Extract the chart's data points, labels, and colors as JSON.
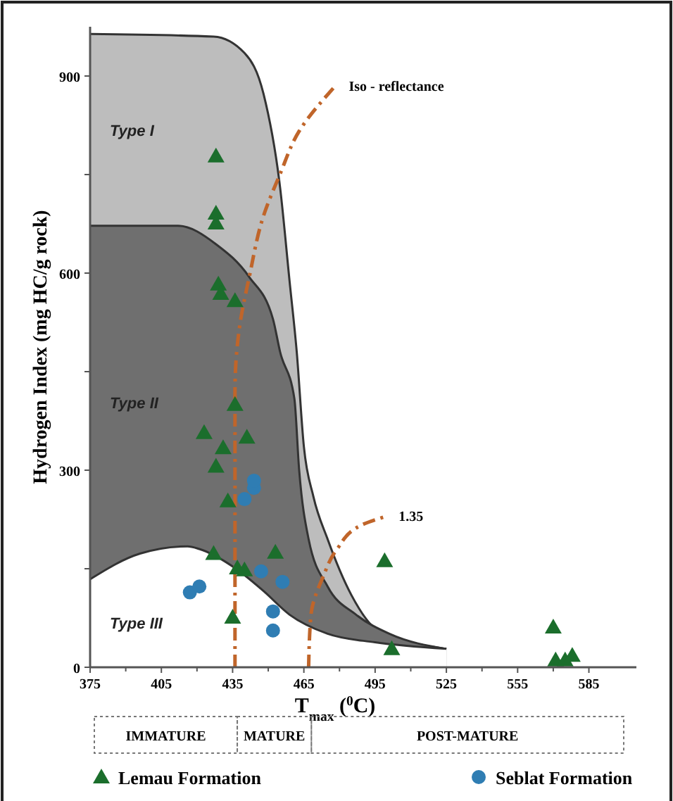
{
  "chart_data": {
    "type": "scatter",
    "xlabel": "T$_{max}$ ($^{0}$C)",
    "ylabel": "Hydrogen Index (mg HC/g rock)",
    "xlim": [
      375,
      605
    ],
    "xticks": [
      375,
      405,
      435,
      465,
      495,
      525,
      555,
      585
    ],
    "ylim": [
      0,
      975
    ],
    "yticks": [
      0,
      {
        "value": 150,
        "label": null
      },
      300,
      {
        "value": 450,
        "label": null
      },
      600,
      {
        "value": 750,
        "label": null
      },
      900
    ],
    "grid": false,
    "legend": "bottom",
    "series": [
      {
        "name": "Type I",
        "type": "area",
        "color": "#bdbdbd",
        "x": [
          375,
          427,
          440,
          448,
          455,
          459,
          462,
          465,
          469,
          475,
          485,
          495,
          510,
          525
        ],
        "values": [
          964,
          960,
          935,
          873,
          730,
          587,
          480,
          336,
          260,
          195,
          110,
          59,
          38,
          28
        ]
      },
      {
        "name": "Type II",
        "type": "area",
        "color": "#6f6f6f",
        "x": [
          375,
          412,
          428,
          442,
          452,
          455,
          461,
          463,
          467,
          475,
          487,
          501,
          525
        ],
        "values": [
          672,
          672,
          644,
          594,
          530,
          480,
          409,
          301,
          195,
          123,
          80,
          51,
          28
        ]
      },
      {
        "name": "Type III",
        "type": "area",
        "color": "#ffffff",
        "x": [
          375,
          396,
          416,
          421,
          436,
          448,
          459,
          475,
          495,
          525
        ],
        "values": [
          134,
          173,
          184,
          180,
          151,
          116,
          80,
          51,
          38,
          28
        ]
      },
      {
        "name": "Iso - reflectance",
        "type": "line",
        "color": "#c0652a",
        "line_style": "dashed",
        "marker": "none",
        "x": [
          436,
          436,
          438,
          442,
          448,
          455,
          463,
          478
        ],
        "values": [
          0,
          420,
          520,
          594,
          687,
          751,
          816,
          884
        ]
      },
      {
        "name": "1.35",
        "type": "line",
        "color": "#c0652a",
        "line_style": "dashed",
        "marker": "none",
        "x": [
          467,
          468,
          473,
          479,
          489,
          499
        ],
        "values": [
          0,
          80,
          137,
          180,
          216,
          229
        ]
      },
      {
        "name": "Lemau Formation",
        "color": "#1b6e2c",
        "marker": "triangle",
        "x": [
          428,
          428,
          428,
          429,
          430,
          436,
          436,
          423,
          441,
          431,
          428,
          433,
          427,
          453,
          437,
          440,
          499,
          435,
          502,
          570,
          571,
          575,
          578
        ],
        "values": [
          778,
          691,
          676,
          583,
          569,
          558,
          400,
          357,
          350,
          334,
          306,
          253,
          173,
          175,
          151,
          148,
          162,
          76,
          28,
          61,
          11,
          11,
          18
        ]
      },
      {
        "name": "Seblat Formation",
        "color": "#2f7db3",
        "marker": "circle",
        "x": [
          417,
          421,
          440,
          444,
          444,
          447,
          456,
          452,
          452
        ],
        "values": [
          114,
          123,
          256,
          273,
          284,
          146,
          130,
          85,
          56
        ]
      }
    ],
    "annotations": [
      "IMMATURE",
      "MATURE",
      "POST-MATURE"
    ]
  }
}
